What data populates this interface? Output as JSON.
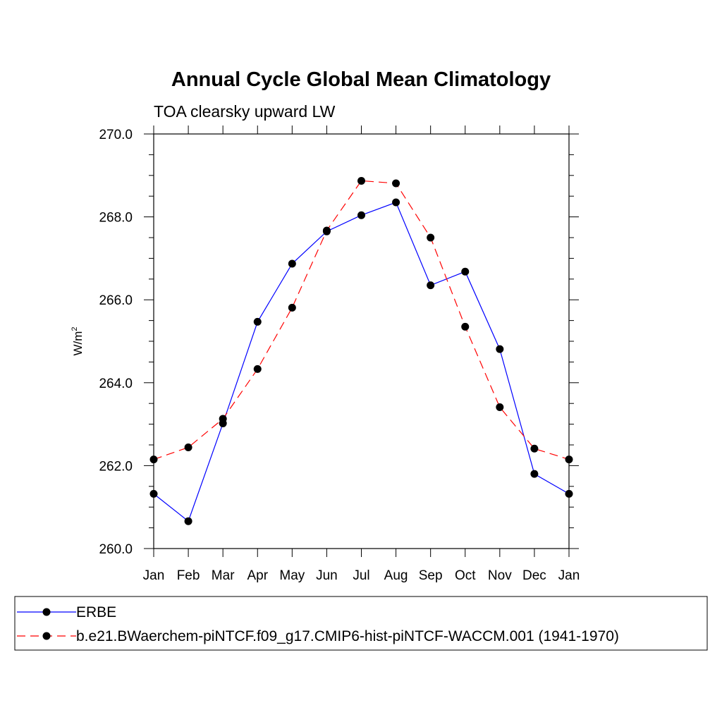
{
  "chart_data": {
    "type": "line",
    "title": "Annual Cycle Global Mean Climatology",
    "subtitle": "TOA clearsky upward LW",
    "ylabel_base": "W/m",
    "ylabel_sup": "2",
    "xlabel": "",
    "categories": [
      "Jan",
      "Feb",
      "Mar",
      "Apr",
      "May",
      "Jun",
      "Jul",
      "Aug",
      "Sep",
      "Oct",
      "Nov",
      "Dec",
      "Jan"
    ],
    "ylim": [
      260.0,
      270.0
    ],
    "yticks": [
      "260.0",
      "262.0",
      "264.0",
      "266.0",
      "268.0",
      "270.0"
    ],
    "grid": false,
    "legend_position": "bottom",
    "series": [
      {
        "name": "ERBE",
        "color": "#0000ff",
        "style": "solid",
        "values": [
          261.32,
          260.66,
          263.02,
          265.47,
          266.87,
          267.65,
          268.04,
          268.35,
          266.35,
          266.68,
          264.81,
          261.8,
          261.32
        ]
      },
      {
        "name": "b.e21.BWaerchem-piNTCF.f09_g17.CMIP6-hist-piNTCF-WACCM.001 (1941-1970)",
        "color": "#ff0000",
        "style": "dashed",
        "values": [
          262.15,
          262.44,
          263.13,
          264.33,
          265.81,
          267.67,
          268.87,
          268.81,
          267.5,
          265.35,
          263.41,
          262.41,
          262.15
        ]
      }
    ]
  }
}
